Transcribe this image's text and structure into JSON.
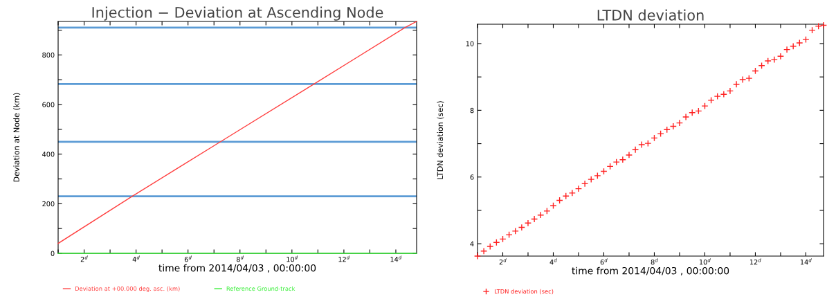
{
  "chart_data": [
    {
      "type": "line",
      "title": "Injection − Deviation at Ascending Node",
      "xlabel": "time from 2014/04/03 , 00:00:00",
      "ylabel": "Deviation at Node (km)",
      "xlim": [
        1,
        14.8
      ],
      "ylim": [
        0,
        935
      ],
      "xticks": [
        {
          "value": 1,
          "label": null
        },
        {
          "value": 2,
          "label": "2$^{d}$"
        },
        {
          "value": 3,
          "label": null
        },
        {
          "value": 4,
          "label": "4$^{d}$"
        },
        {
          "value": 5,
          "label": null
        },
        {
          "value": 6,
          "label": "6$^{d}$"
        },
        {
          "value": 7,
          "label": null
        },
        {
          "value": 8,
          "label": "8$^{d}$"
        },
        {
          "value": 9,
          "label": null
        },
        {
          "value": 10,
          "label": "10$^{d}$"
        },
        {
          "value": 11,
          "label": null
        },
        {
          "value": 12,
          "label": "12$^{d}$"
        },
        {
          "value": 13,
          "label": null
        },
        {
          "value": 14,
          "label": "14$^{d}$"
        }
      ],
      "yticks": [
        0,
        {
          "value": 100,
          "label": null
        },
        200,
        {
          "value": 300,
          "label": null
        },
        400,
        {
          "value": 500,
          "label": null
        },
        600,
        {
          "value": 700,
          "label": null
        },
        800,
        {
          "value": 900,
          "label": null
        }
      ],
      "series": [
        {
          "name": "Deviation at +00.000 deg. asc. (km)",
          "color": "#ff4040",
          "x": [
            1,
            3.85,
            7.25,
            10.85,
            14.35,
            14.8
          ],
          "values": [
            40,
            230,
            450,
            683,
            910,
            935
          ]
        },
        {
          "name": "Reference Ground-track",
          "color": "#33ee33",
          "x": [
            1,
            14.8
          ],
          "values": [
            0,
            0
          ]
        }
      ],
      "ref_lines": [
        {
          "axis": "y",
          "value": 230,
          "color": "#5b9bd5"
        },
        {
          "axis": "y",
          "value": 450,
          "color": "#5b9bd5"
        },
        {
          "axis": "y",
          "value": 683,
          "color": "#5b9bd5"
        },
        {
          "axis": "y",
          "value": 910,
          "color": "#5b9bd5"
        }
      ],
      "grid": false,
      "legend": "bottom left"
    },
    {
      "type": "scatter",
      "title": "LTDN deviation",
      "xlabel": "time from 2014/04/03 , 00:00:00",
      "ylabel": "LTDN deviation (sec)",
      "xlim": [
        1,
        14.7
      ],
      "ylim": [
        3.63,
        10.58
      ],
      "xticks": [
        {
          "value": 1,
          "label": null
        },
        {
          "value": 2,
          "label": "2$^{d}$"
        },
        {
          "value": 3,
          "label": null
        },
        {
          "value": 4,
          "label": "4$^{d}$"
        },
        {
          "value": 5,
          "label": null
        },
        {
          "value": 6,
          "label": "6$^{d}$"
        },
        {
          "value": 7,
          "label": null
        },
        {
          "value": 8,
          "label": "8$^{d}$"
        },
        {
          "value": 9,
          "label": null
        },
        {
          "value": 10,
          "label": "10$^{d}$"
        },
        {
          "value": 11,
          "label": null
        },
        {
          "value": 12,
          "label": "12$^{d}$"
        },
        {
          "value": 13,
          "label": null
        },
        {
          "value": 14,
          "label": "14$^{d}$"
        }
      ],
      "yticks": [
        4,
        {
          "value": 5,
          "label": null
        },
        6,
        {
          "value": 7,
          "label": null
        },
        8,
        {
          "value": 9,
          "label": null
        },
        10
      ],
      "marker": "cross",
      "series": [
        {
          "name": "LTDN deviation (sec)",
          "color": "#ff2020",
          "x": [
            1.0,
            1.25,
            1.5,
            1.75,
            2.0,
            2.25,
            2.5,
            2.75,
            3.0,
            3.25,
            3.5,
            3.75,
            4.0,
            4.25,
            4.5,
            4.75,
            5.0,
            5.25,
            5.5,
            5.75,
            6.0,
            6.25,
            6.5,
            6.75,
            7.0,
            7.25,
            7.5,
            7.75,
            8.0,
            8.25,
            8.5,
            8.75,
            9.0,
            9.25,
            9.5,
            9.75,
            10.0,
            10.25,
            10.5,
            10.75,
            11.0,
            11.25,
            11.5,
            11.75,
            12.0,
            12.25,
            12.5,
            12.75,
            13.0,
            13.25,
            13.5,
            13.75,
            14.0,
            14.25,
            14.5,
            14.7
          ],
          "values": [
            3.63,
            3.78,
            3.92,
            4.04,
            4.14,
            4.27,
            4.38,
            4.49,
            4.62,
            4.74,
            4.86,
            4.98,
            5.14,
            5.3,
            5.43,
            5.52,
            5.65,
            5.8,
            5.93,
            6.04,
            6.17,
            6.32,
            6.45,
            6.52,
            6.66,
            6.82,
            6.97,
            7.01,
            7.17,
            7.3,
            7.42,
            7.52,
            7.62,
            7.8,
            7.93,
            7.98,
            8.13,
            8.3,
            8.42,
            8.48,
            8.58,
            8.78,
            8.92,
            8.96,
            9.18,
            9.34,
            9.48,
            9.52,
            9.62,
            9.82,
            9.92,
            10.02,
            10.12,
            10.4,
            10.52,
            10.55
          ]
        }
      ],
      "grid": false,
      "legend": "bottom left"
    }
  ]
}
